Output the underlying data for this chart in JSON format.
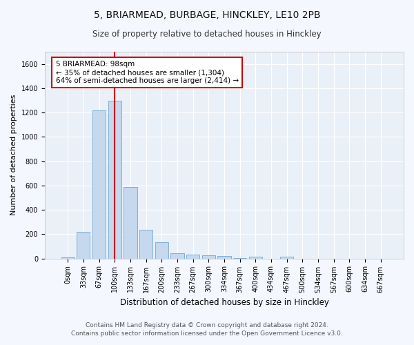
{
  "title": "5, BRIARMEAD, BURBAGE, HINCKLEY, LE10 2PB",
  "subtitle": "Size of property relative to detached houses in Hinckley",
  "xlabel": "Distribution of detached houses by size in Hinckley",
  "ylabel": "Number of detached properties",
  "bar_color": "#c5d8ed",
  "bar_edge_color": "#6fa8d0",
  "background_color": "#eaf0f8",
  "grid_color": "#ffffff",
  "categories": [
    "0sqm",
    "33sqm",
    "67sqm",
    "100sqm",
    "133sqm",
    "167sqm",
    "200sqm",
    "233sqm",
    "267sqm",
    "300sqm",
    "334sqm",
    "367sqm",
    "400sqm",
    "434sqm",
    "467sqm",
    "500sqm",
    "534sqm",
    "567sqm",
    "600sqm",
    "634sqm",
    "667sqm"
  ],
  "values": [
    10,
    220,
    1220,
    1295,
    590,
    235,
    135,
    45,
    30,
    25,
    20,
    5,
    15,
    0,
    12,
    0,
    0,
    0,
    0,
    0,
    0
  ],
  "property_label": "5 BRIARMEAD: 98sqm",
  "annotation_line1": "← 35% of detached houses are smaller (1,304)",
  "annotation_line2": "64% of semi-detached houses are larger (2,414) →",
  "vline_color": "#cc0000",
  "annotation_box_edge_color": "#cc0000",
  "ylim": [
    0,
    1700
  ],
  "yticks": [
    0,
    200,
    400,
    600,
    800,
    1000,
    1200,
    1400,
    1600
  ],
  "footer1": "Contains HM Land Registry data © Crown copyright and database right 2024.",
  "footer2": "Contains public sector information licensed under the Open Government Licence v3.0.",
  "title_fontsize": 10,
  "subtitle_fontsize": 8.5,
  "annotation_fontsize": 7.5,
  "tick_fontsize": 7,
  "xlabel_fontsize": 8.5,
  "ylabel_fontsize": 8,
  "footer_fontsize": 6.5
}
